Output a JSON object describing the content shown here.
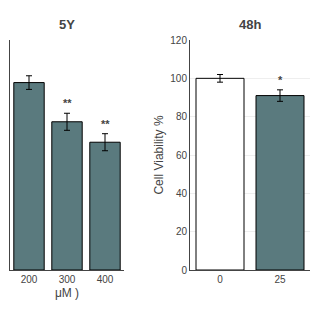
{
  "chart_data": [
    {
      "type": "bar",
      "title": "5Y",
      "categories": [
        "200",
        "300",
        "400"
      ],
      "values": [
        110,
        87,
        75
      ],
      "errors": [
        4,
        5,
        5
      ],
      "color": "#5a7a7e",
      "significance": [
        null,
        "**",
        "**"
      ],
      "xlabel": "μM )",
      "ylim": [
        0,
        135
      ],
      "tick_labels": "x"
    },
    {
      "type": "bar",
      "title": "48h",
      "categories": [
        "0",
        "25"
      ],
      "values": [
        100,
        91
      ],
      "errors": [
        2,
        3
      ],
      "colors": [
        "white",
        "#5a7a7e"
      ],
      "significance": [
        null,
        "*"
      ],
      "ylabel": "Cell Viability %",
      "ylim": [
        0,
        120
      ],
      "yticks": [
        0,
        20,
        40,
        60,
        80,
        100,
        120
      ]
    }
  ]
}
